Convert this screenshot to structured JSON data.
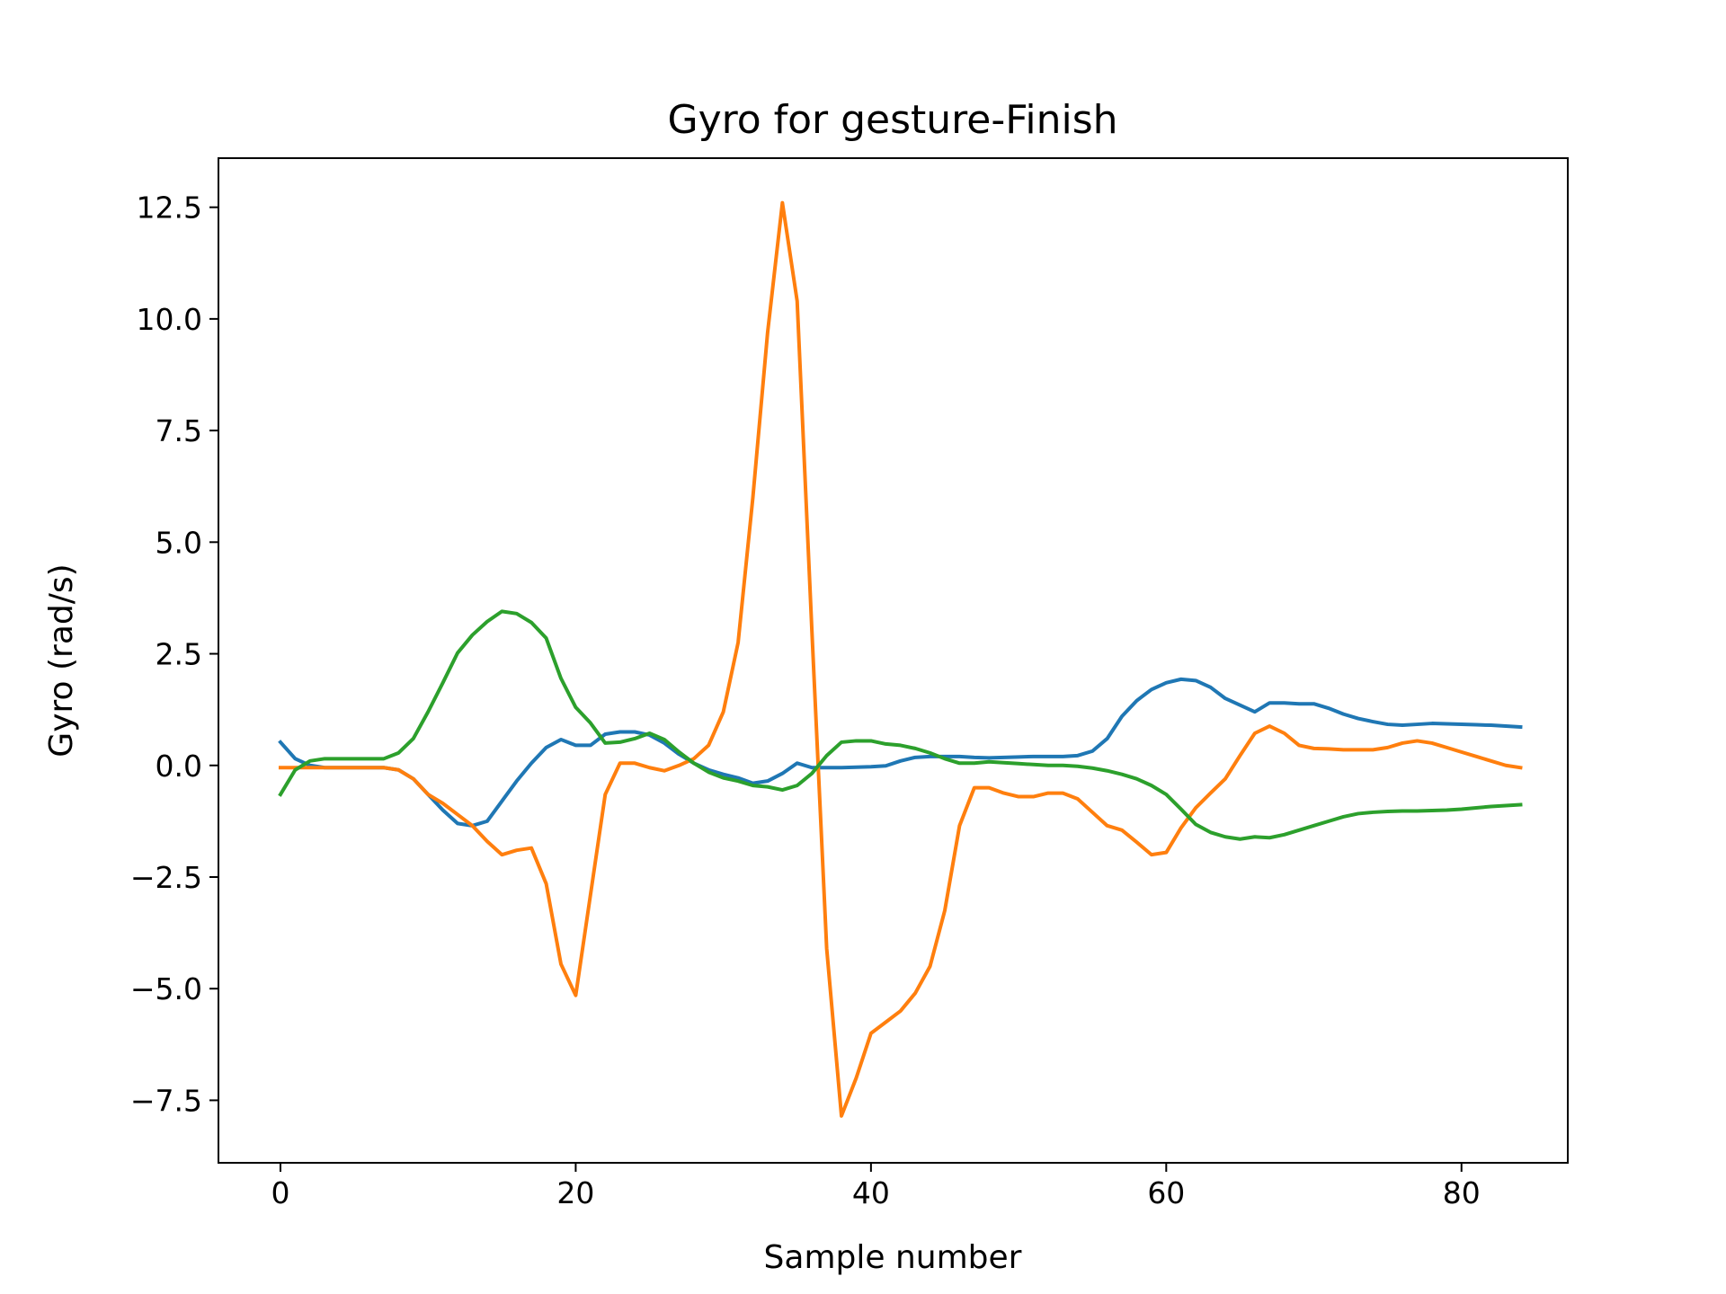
{
  "chart_data": {
    "type": "line",
    "title": "Gyro for gesture-Finish",
    "xlabel": "Sample number",
    "ylabel": "Gyro  (rad/s)",
    "xlim": [
      -4.2,
      87.2
    ],
    "ylim": [
      -8.9,
      13.6
    ],
    "xticks": [
      0,
      20,
      40,
      60,
      80
    ],
    "xtick_labels": [
      "0",
      "20",
      "40",
      "60",
      "80"
    ],
    "yticks": [
      12.5,
      10.0,
      7.5,
      5.0,
      2.5,
      0.0,
      -2.5,
      -5.0,
      -7.5
    ],
    "ytick_labels": [
      "12.5",
      "10.0",
      "7.5",
      "5.0",
      "2.5",
      "0.0",
      "−2.5",
      "−5.0",
      "−7.5"
    ],
    "grid": false,
    "legend": "none",
    "x_start": 0,
    "x_step": 1,
    "series": [
      {
        "color": "#1f77b4",
        "values": [
          0.52,
          0.15,
          0.0,
          -0.05,
          -0.05,
          -0.05,
          -0.05,
          -0.05,
          -0.1,
          -0.3,
          -0.65,
          -1.0,
          -1.3,
          -1.35,
          -1.25,
          -0.8,
          -0.35,
          0.05,
          0.4,
          0.58,
          0.45,
          0.45,
          0.7,
          0.75,
          0.75,
          0.68,
          0.5,
          0.25,
          0.05,
          -0.1,
          -0.2,
          -0.28,
          -0.4,
          -0.35,
          -0.18,
          0.05,
          -0.05,
          -0.05,
          -0.05,
          -0.04,
          -0.03,
          -0.01,
          0.1,
          0.18,
          0.2,
          0.2,
          0.2,
          0.18,
          0.17,
          0.18,
          0.19,
          0.2,
          0.2,
          0.2,
          0.22,
          0.32,
          0.6,
          1.1,
          1.45,
          1.7,
          1.85,
          1.93,
          1.9,
          1.75,
          1.5,
          1.35,
          1.2,
          1.4,
          1.4,
          1.38,
          1.38,
          1.28,
          1.15,
          1.05,
          0.98,
          0.92,
          0.9,
          0.92,
          0.94,
          0.93,
          0.92,
          0.91,
          0.9,
          0.88,
          0.86
        ]
      },
      {
        "color": "#ff7f0e",
        "values": [
          -0.05,
          -0.05,
          -0.05,
          -0.05,
          -0.05,
          -0.05,
          -0.05,
          -0.05,
          -0.1,
          -0.3,
          -0.65,
          -0.85,
          -1.1,
          -1.35,
          -1.7,
          -2.0,
          -1.9,
          -1.85,
          -2.65,
          -4.45,
          -5.15,
          -2.9,
          -0.65,
          0.05,
          0.05,
          -0.05,
          -0.12,
          0.0,
          0.15,
          0.45,
          1.2,
          2.75,
          6.0,
          9.7,
          12.6,
          10.4,
          3.0,
          -4.1,
          -7.85,
          -7.0,
          -6.0,
          -5.75,
          -5.5,
          -5.1,
          -4.5,
          -3.25,
          -1.35,
          -0.5,
          -0.5,
          -0.62,
          -0.7,
          -0.7,
          -0.62,
          -0.62,
          -0.75,
          -1.05,
          -1.35,
          -1.45,
          -1.72,
          -2.0,
          -1.95,
          -1.4,
          -0.95,
          -0.62,
          -0.3,
          0.22,
          0.72,
          0.88,
          0.72,
          0.45,
          0.38,
          0.37,
          0.35,
          0.35,
          0.35,
          0.4,
          0.5,
          0.55,
          0.5,
          0.4,
          0.3,
          0.2,
          0.1,
          0.0,
          -0.05
        ]
      },
      {
        "color": "#2ca02c",
        "values": [
          -0.65,
          -0.1,
          0.1,
          0.15,
          0.15,
          0.15,
          0.15,
          0.15,
          0.28,
          0.6,
          1.2,
          1.85,
          2.52,
          2.92,
          3.22,
          3.45,
          3.4,
          3.2,
          2.85,
          1.95,
          1.3,
          0.95,
          0.5,
          0.52,
          0.6,
          0.72,
          0.58,
          0.3,
          0.05,
          -0.15,
          -0.28,
          -0.35,
          -0.45,
          -0.48,
          -0.55,
          -0.45,
          -0.18,
          0.22,
          0.52,
          0.55,
          0.55,
          0.48,
          0.45,
          0.38,
          0.28,
          0.15,
          0.05,
          0.05,
          0.08,
          0.06,
          0.04,
          0.02,
          0.0,
          0.0,
          -0.02,
          -0.06,
          -0.12,
          -0.2,
          -0.3,
          -0.45,
          -0.65,
          -0.98,
          -1.32,
          -1.5,
          -1.6,
          -1.65,
          -1.6,
          -1.62,
          -1.55,
          -1.45,
          -1.35,
          -1.25,
          -1.15,
          -1.08,
          -1.05,
          -1.03,
          -1.02,
          -1.02,
          -1.01,
          -1.0,
          -0.98,
          -0.95,
          -0.92,
          -0.9,
          -0.88
        ]
      }
    ]
  }
}
